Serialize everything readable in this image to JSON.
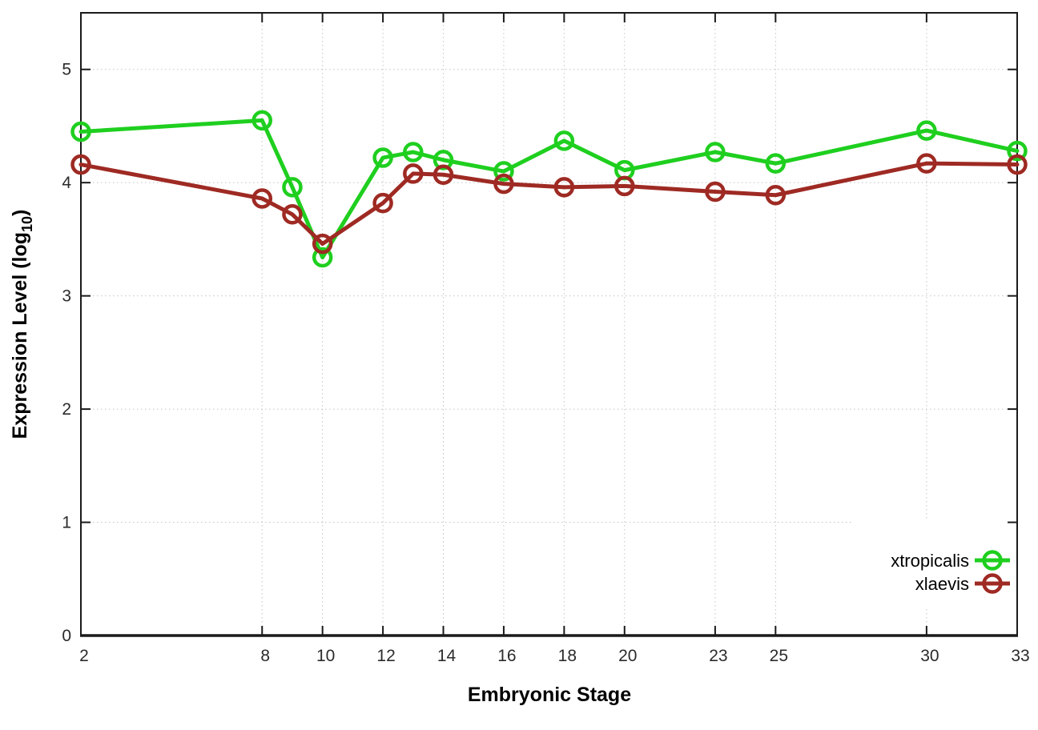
{
  "figure": {
    "background": "#ffffff"
  },
  "chart_data": {
    "type": "line",
    "title": "",
    "xlabel": "Embryonic Stage",
    "ylabel": {
      "prefix": "Expression Level (log",
      "sub": "10",
      "suffix": ")"
    },
    "x": [
      2,
      8,
      9,
      10,
      12,
      13,
      14,
      16,
      18,
      20,
      23,
      25,
      30,
      33
    ],
    "series": [
      {
        "name": "xtropicalis",
        "color": "#1fcf1f",
        "values": [
          4.45,
          4.55,
          3.96,
          3.34,
          4.22,
          4.27,
          4.2,
          4.1,
          4.37,
          4.11,
          4.27,
          4.17,
          4.46,
          4.28
        ]
      },
      {
        "name": "xlaevis",
        "color": "#9e2a23",
        "values": [
          4.16,
          3.86,
          3.72,
          3.46,
          3.82,
          4.08,
          4.07,
          3.99,
          3.96,
          3.97,
          3.92,
          3.89,
          4.17,
          4.16
        ]
      }
    ],
    "xticks": [
      2,
      8,
      10,
      12,
      14,
      16,
      18,
      20,
      23,
      25,
      30,
      33
    ],
    "yticks": [
      0,
      1,
      2,
      3,
      4,
      5
    ],
    "xlim": [
      2,
      33
    ],
    "ylim": [
      0,
      5.5
    ],
    "grid": true,
    "grid_color": "#c4c4c4",
    "axis_color": "#1a1a1a",
    "marker": "open-circle",
    "legend_position": "bottom-right"
  }
}
